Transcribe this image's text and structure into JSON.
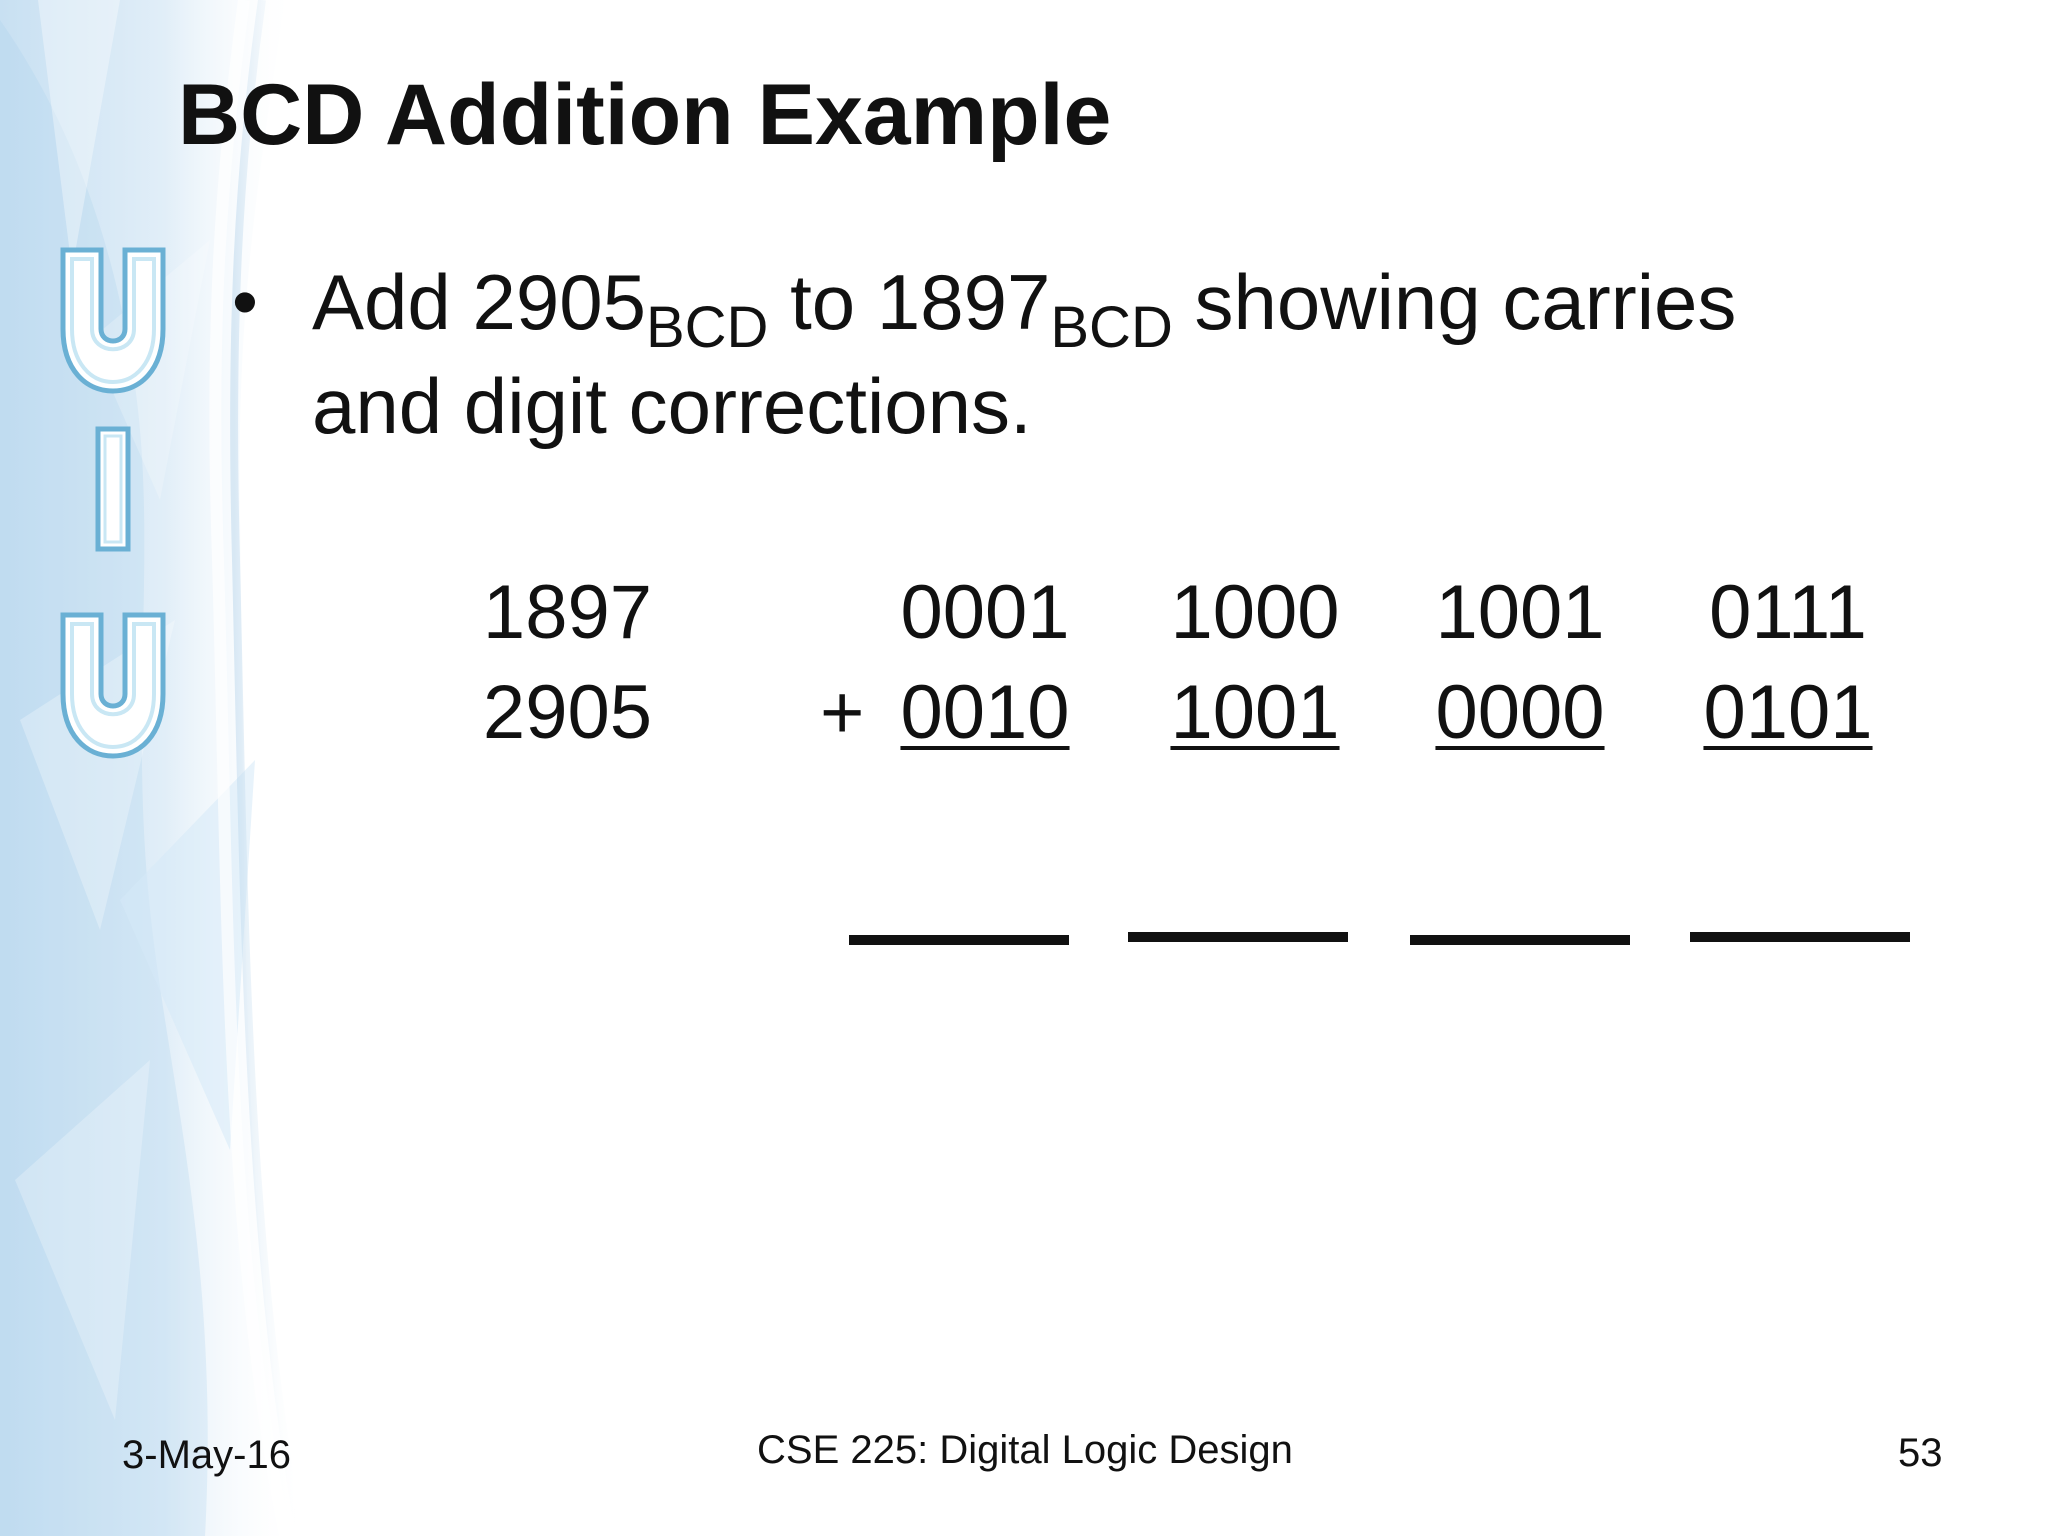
{
  "slide": {
    "title": "BCD Addition Example",
    "bullet": {
      "prefix": "Add 2905",
      "subscript_1": "BCD",
      "middle": " to 1897",
      "subscript_2": "BCD",
      "suffix": " showing carries",
      "line_2": "and digit corrections."
    },
    "problem": {
      "decimal_top": "1897",
      "decimal_bottom": "2905",
      "plus_sign": "+",
      "top_nibbles": [
        "0001",
        "1000",
        "1001",
        "0111"
      ],
      "bottom_nibbles": [
        "0010",
        "1001",
        "0000",
        "0101"
      ]
    },
    "footer": {
      "date": "3-May-16",
      "course": "CSE 225: Digital Logic Design",
      "page_number": "53"
    },
    "logo_letters": [
      "U",
      "I",
      "U"
    ],
    "colors": {
      "text": "#111111",
      "side_light_blue": "#dcecf7",
      "side_blue": "#9fc7e8",
      "logo_outline": "#5fa8cf"
    }
  }
}
